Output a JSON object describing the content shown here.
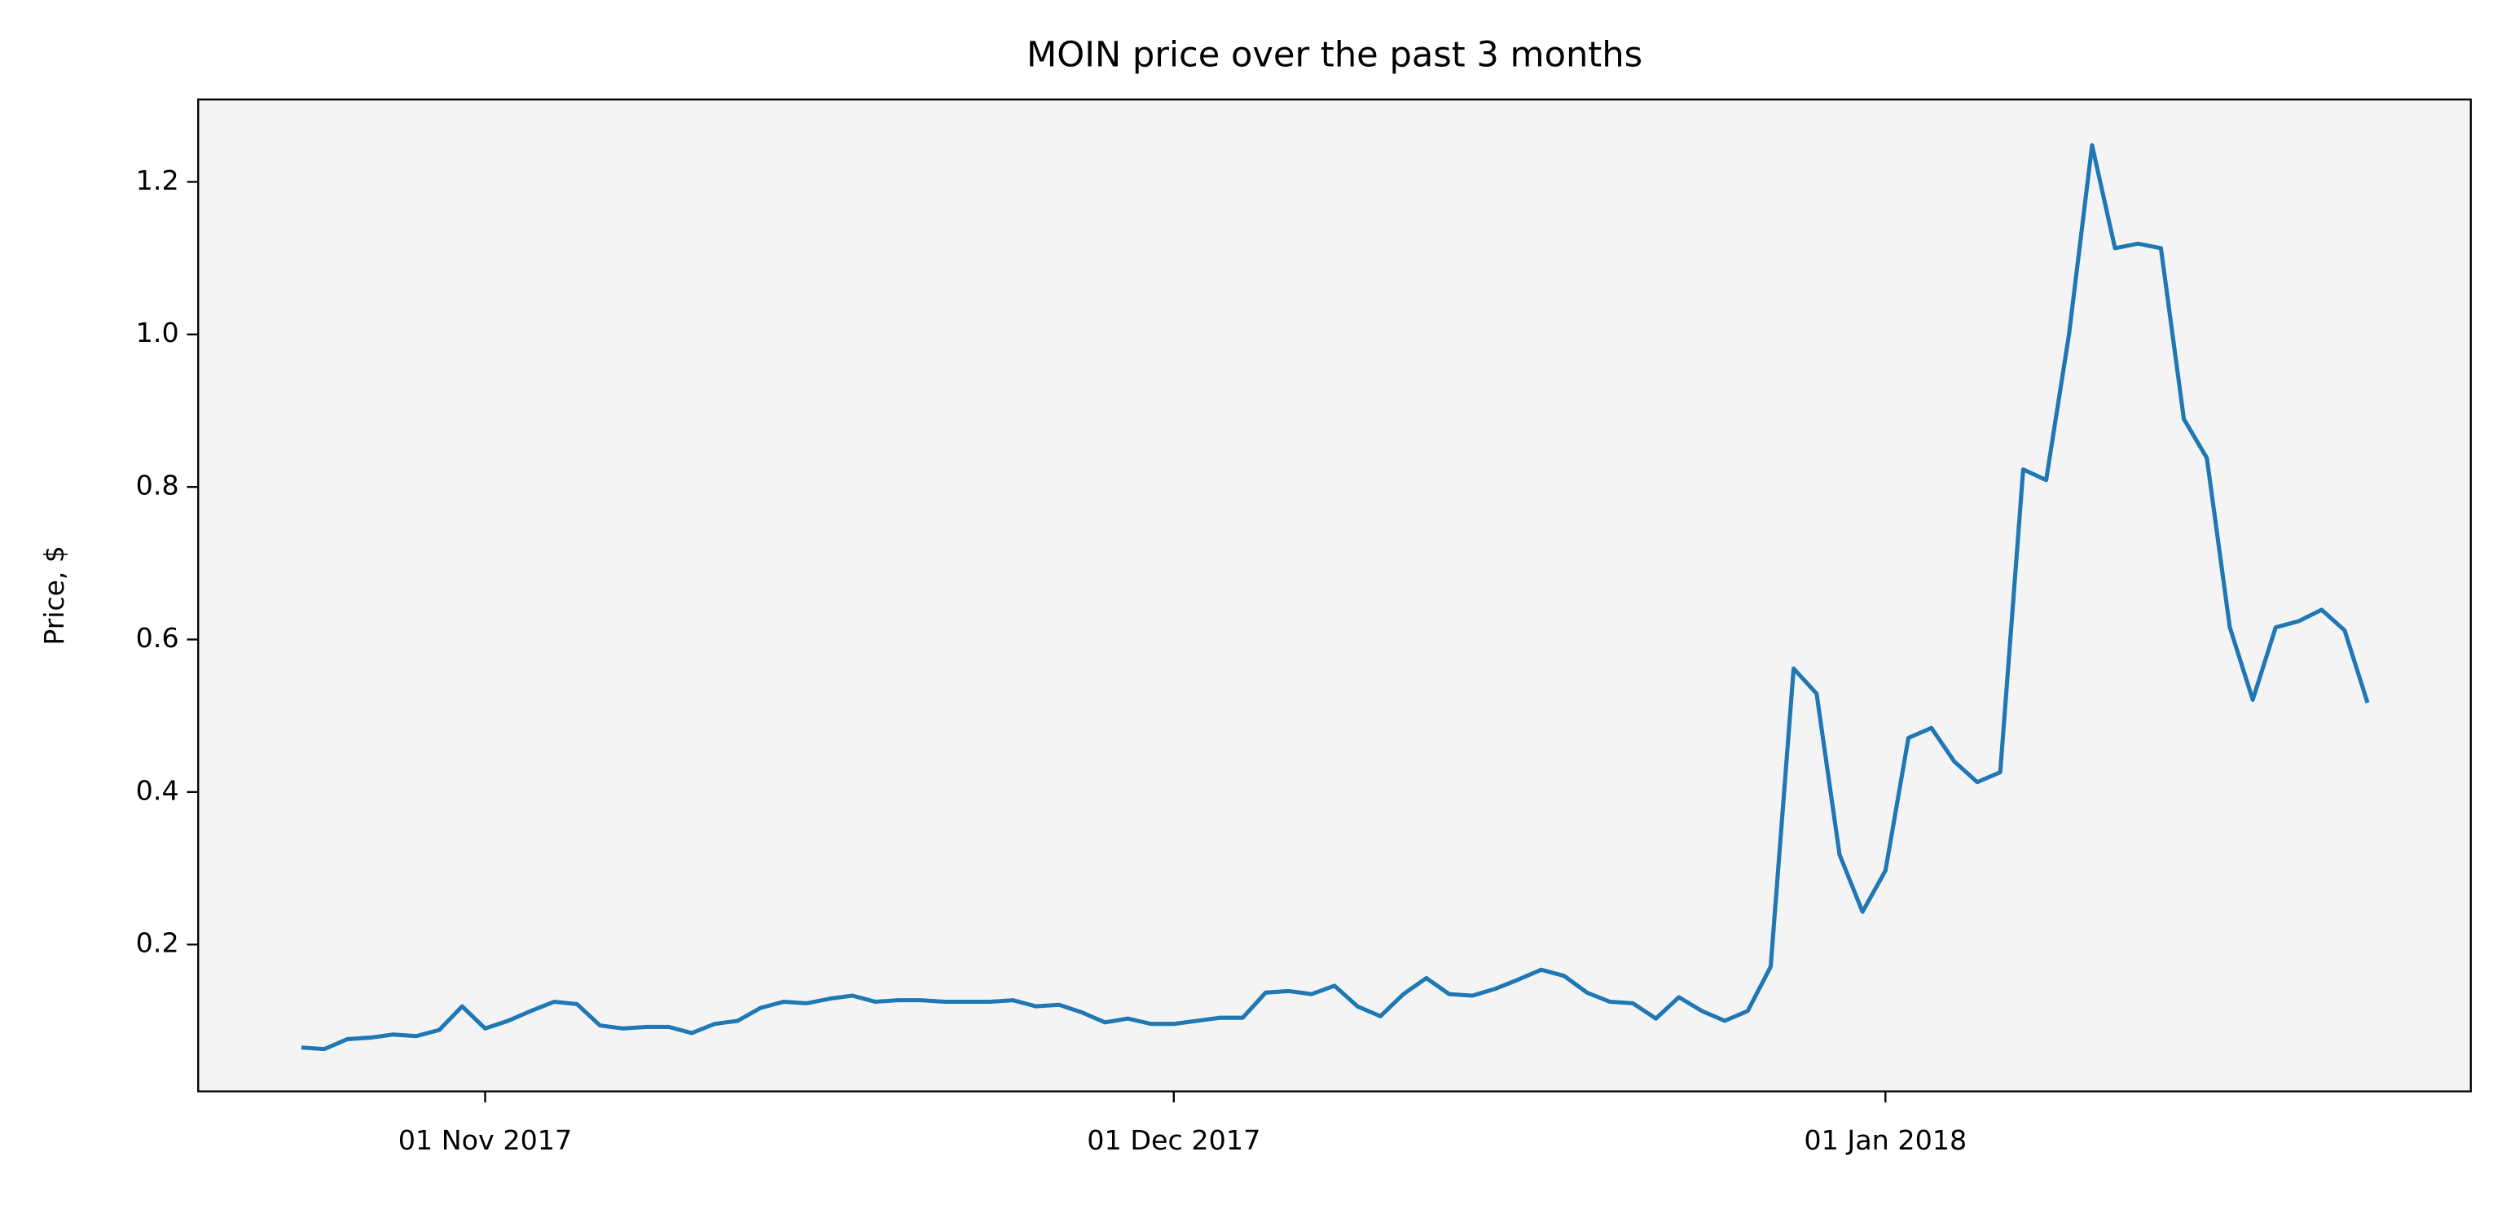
{
  "chart_data": {
    "type": "line",
    "title": "MOIN price over the past 3 months",
    "ylabel": "Price, $",
    "x": [
      "2017-10-24",
      "2017-10-25",
      "2017-10-26",
      "2017-10-27",
      "2017-10-28",
      "2017-10-29",
      "2017-10-30",
      "2017-10-31",
      "2017-11-01",
      "2017-11-02",
      "2017-11-03",
      "2017-11-04",
      "2017-11-05",
      "2017-11-06",
      "2017-11-07",
      "2017-11-08",
      "2017-11-09",
      "2017-11-10",
      "2017-11-11",
      "2017-11-12",
      "2017-11-13",
      "2017-11-14",
      "2017-11-15",
      "2017-11-16",
      "2017-11-17",
      "2017-11-18",
      "2017-11-19",
      "2017-11-20",
      "2017-11-21",
      "2017-11-22",
      "2017-11-23",
      "2017-11-24",
      "2017-11-25",
      "2017-11-26",
      "2017-11-27",
      "2017-11-28",
      "2017-11-29",
      "2017-11-30",
      "2017-12-01",
      "2017-12-02",
      "2017-12-03",
      "2017-12-04",
      "2017-12-05",
      "2017-12-06",
      "2017-12-07",
      "2017-12-08",
      "2017-12-09",
      "2017-12-10",
      "2017-12-11",
      "2017-12-12",
      "2017-12-13",
      "2017-12-14",
      "2017-12-15",
      "2017-12-16",
      "2017-12-17",
      "2017-12-18",
      "2017-12-19",
      "2017-12-20",
      "2017-12-21",
      "2017-12-22",
      "2017-12-23",
      "2017-12-24",
      "2017-12-25",
      "2017-12-26",
      "2017-12-27",
      "2017-12-28",
      "2017-12-29",
      "2017-12-30",
      "2017-12-31",
      "2018-01-01",
      "2018-01-02",
      "2018-01-03",
      "2018-01-04",
      "2018-01-05",
      "2018-01-06",
      "2018-01-07",
      "2018-01-08",
      "2018-01-09",
      "2018-01-10",
      "2018-01-11",
      "2018-01-12",
      "2018-01-13",
      "2018-01-14",
      "2018-01-15",
      "2018-01-16",
      "2018-01-17",
      "2018-01-18",
      "2018-01-19",
      "2018-01-20",
      "2018-01-21",
      "2018-01-22"
    ],
    "series": [
      {
        "color": "#1f77b4",
        "values": [
          0.065,
          0.063,
          0.076,
          0.078,
          0.082,
          0.08,
          0.088,
          0.119,
          0.09,
          0.1,
          0.113,
          0.125,
          0.122,
          0.094,
          0.09,
          0.092,
          0.092,
          0.084,
          0.096,
          0.1,
          0.117,
          0.125,
          0.123,
          0.129,
          0.133,
          0.125,
          0.127,
          0.127,
          0.125,
          0.125,
          0.125,
          0.127,
          0.119,
          0.121,
          0.111,
          0.098,
          0.103,
          0.096,
          0.096,
          0.1,
          0.104,
          0.104,
          0.137,
          0.139,
          0.135,
          0.146,
          0.119,
          0.106,
          0.135,
          0.156,
          0.135,
          0.133,
          0.142,
          0.154,
          0.167,
          0.159,
          0.137,
          0.125,
          0.123,
          0.103,
          0.131,
          0.113,
          0.1,
          0.113,
          0.171,
          0.562,
          0.529,
          0.318,
          0.243,
          0.297,
          0.471,
          0.484,
          0.44,
          0.413,
          0.426,
          0.823,
          0.809,
          1.001,
          1.248,
          1.113,
          1.119,
          1.113,
          0.889,
          0.838,
          0.616,
          0.521,
          0.616,
          0.624,
          0.639,
          0.612,
          0.517
        ]
      }
    ],
    "xlim": [
      "2017-10-19T12:00:00Z",
      "2018-01-26T12:00:00Z"
    ],
    "xticks": [
      {
        "value": "2017-11-01",
        "label": "01 Nov 2017"
      },
      {
        "value": "2017-12-01",
        "label": "01 Dec 2017"
      },
      {
        "value": "2018-01-01",
        "label": "01 Jan 2018"
      }
    ],
    "ylim": [
      0.0075,
      1.308
    ],
    "yticks": [
      0.2,
      0.4,
      0.6,
      0.8,
      {
        "value": 1,
        "label": "1.0"
      },
      1.2
    ],
    "grid": false
  }
}
